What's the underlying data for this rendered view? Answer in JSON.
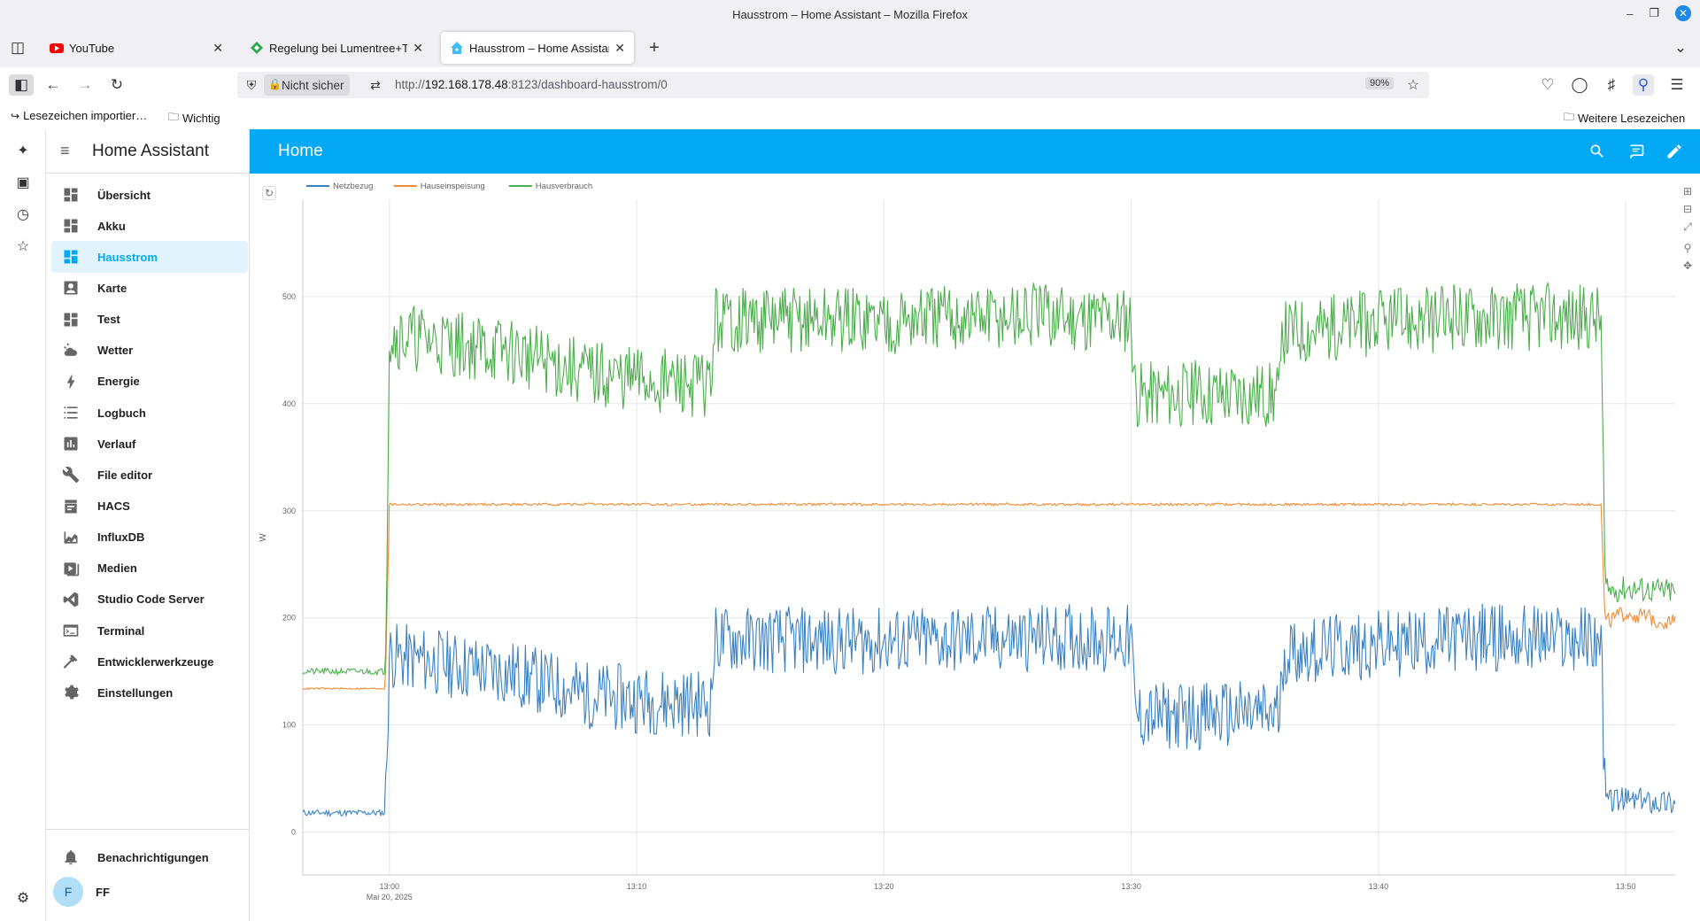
{
  "window": {
    "title": "Hausstrom – Home Assistant – Mozilla Firefox"
  },
  "tabs": [
    {
      "title": "YouTube",
      "icon": "youtube-icon",
      "active": false
    },
    {
      "title": "Regelung bei Lumentree+Tr",
      "icon": "green-diamond-icon",
      "active": false
    },
    {
      "title": "Hausstrom – Home Assistan",
      "icon": "home-assistant-icon",
      "active": true
    }
  ],
  "navbar": {
    "security_label": "Nicht sicher",
    "url_prefix": "http://",
    "url_host": "192.168.178.48",
    "url_rest": ":8123/dashboard-hausstrom/0",
    "zoom": "90%"
  },
  "bookmarks": {
    "import_label": "Lesezeichen importier…",
    "wichtig_label": "Wichtig",
    "more_label": "Weitere Lesezeichen"
  },
  "ha_sidebar": {
    "title": "Home Assistant",
    "items": [
      {
        "label": "Übersicht",
        "icon": "dashboard-icon",
        "selected": false
      },
      {
        "label": "Akku",
        "icon": "dashboard-icon",
        "selected": false
      },
      {
        "label": "Hausstrom",
        "icon": "dashboard-icon",
        "selected": true
      },
      {
        "label": "Karte",
        "icon": "account-box-icon",
        "selected": false
      },
      {
        "label": "Test",
        "icon": "dashboard-icon",
        "selected": false
      },
      {
        "label": "Wetter",
        "icon": "weather-partly-cloudy-icon",
        "selected": false
      },
      {
        "label": "Energie",
        "icon": "lightning-bolt-icon",
        "selected": false
      },
      {
        "label": "Logbuch",
        "icon": "format-list-icon",
        "selected": false
      },
      {
        "label": "Verlauf",
        "icon": "chart-box-icon",
        "selected": false
      },
      {
        "label": "File editor",
        "icon": "wrench-icon",
        "selected": false
      },
      {
        "label": "HACS",
        "icon": "hacs-icon",
        "selected": false
      },
      {
        "label": "InfluxDB",
        "icon": "chart-areaspline-icon",
        "selected": false
      },
      {
        "label": "Medien",
        "icon": "play-box-icon",
        "selected": false
      },
      {
        "label": "Studio Code Server",
        "icon": "vscode-icon",
        "selected": false
      },
      {
        "label": "Terminal",
        "icon": "console-icon",
        "selected": false
      },
      {
        "label": "Entwicklerwerkzeuge",
        "icon": "hammer-icon",
        "selected": false
      },
      {
        "label": "Einstellungen",
        "icon": "cog-icon",
        "selected": false
      }
    ],
    "notifications_label": "Benachrichtigungen",
    "user_initial": "F",
    "user_label": "FF"
  },
  "topbar": {
    "title": "Home"
  },
  "colors": {
    "accent": "#03a9f4",
    "netzbezug": "#3b82c4",
    "hauseinspeisung": "#f08c34",
    "hausverbrauch": "#4cae4c"
  },
  "chart_data": {
    "type": "line",
    "ylabel": "W",
    "ylim": [
      -40,
      590
    ],
    "yticks": [
      0,
      100,
      200,
      300,
      400,
      500
    ],
    "xlim": [
      "12:56:30",
      "13:52:00"
    ],
    "xticks": [
      {
        "t": "13:00",
        "label": "13:00",
        "sublabel": "Mai 20, 2025"
      },
      {
        "t": "13:10",
        "label": "13:10",
        "sublabel": ""
      },
      {
        "t": "13:20",
        "label": "13:20",
        "sublabel": ""
      },
      {
        "t": "13:30",
        "label": "13:30",
        "sublabel": ""
      },
      {
        "t": "13:40",
        "label": "13:40",
        "sublabel": ""
      },
      {
        "t": "13:50",
        "label": "13:50",
        "sublabel": ""
      }
    ],
    "legend_position": "top-left",
    "grid": true,
    "series": [
      {
        "name": "Netzbezug",
        "x": [
          "12:56:30",
          "12:59:50",
          "13:00:00",
          "13:05:00",
          "13:08:00",
          "13:11:00",
          "13:13:00",
          "13:13:10",
          "13:20:00",
          "13:28:00",
          "13:30:00",
          "13:30:10",
          "13:36:00",
          "13:36:10",
          "13:44:00",
          "13:49:00",
          "13:49:10",
          "13:50:00",
          "13:52:00"
        ],
        "y": [
          18,
          18,
          165,
          148,
          128,
          122,
          120,
          180,
          178,
          182,
          180,
          108,
          110,
          168,
          182,
          180,
          30,
          30,
          28
        ]
      },
      {
        "name": "Hauseinspeisung",
        "x": [
          "12:56:30",
          "12:59:50",
          "13:00:00",
          "13:10:00",
          "13:20:00",
          "13:30:00",
          "13:40:00",
          "13:49:00",
          "13:49:10",
          "13:50:00",
          "13:52:00"
        ],
        "y": [
          134,
          134,
          306,
          306,
          306,
          306,
          306,
          306,
          195,
          205,
          195
        ]
      },
      {
        "name": "Hausverbrauch",
        "x": [
          "12:56:30",
          "12:59:50",
          "13:00:00",
          "13:05:00",
          "13:08:00",
          "13:11:00",
          "13:13:00",
          "13:13:10",
          "13:20:00",
          "13:28:00",
          "13:30:00",
          "13:30:10",
          "13:36:00",
          "13:36:10",
          "13:44:00",
          "13:49:00",
          "13:49:10",
          "13:50:00",
          "13:52:00"
        ],
        "y": [
          150,
          150,
          465,
          448,
          428,
          420,
          418,
          478,
          478,
          482,
          480,
          410,
          410,
          468,
          482,
          480,
          225,
          228,
          225
        ]
      }
    ]
  }
}
